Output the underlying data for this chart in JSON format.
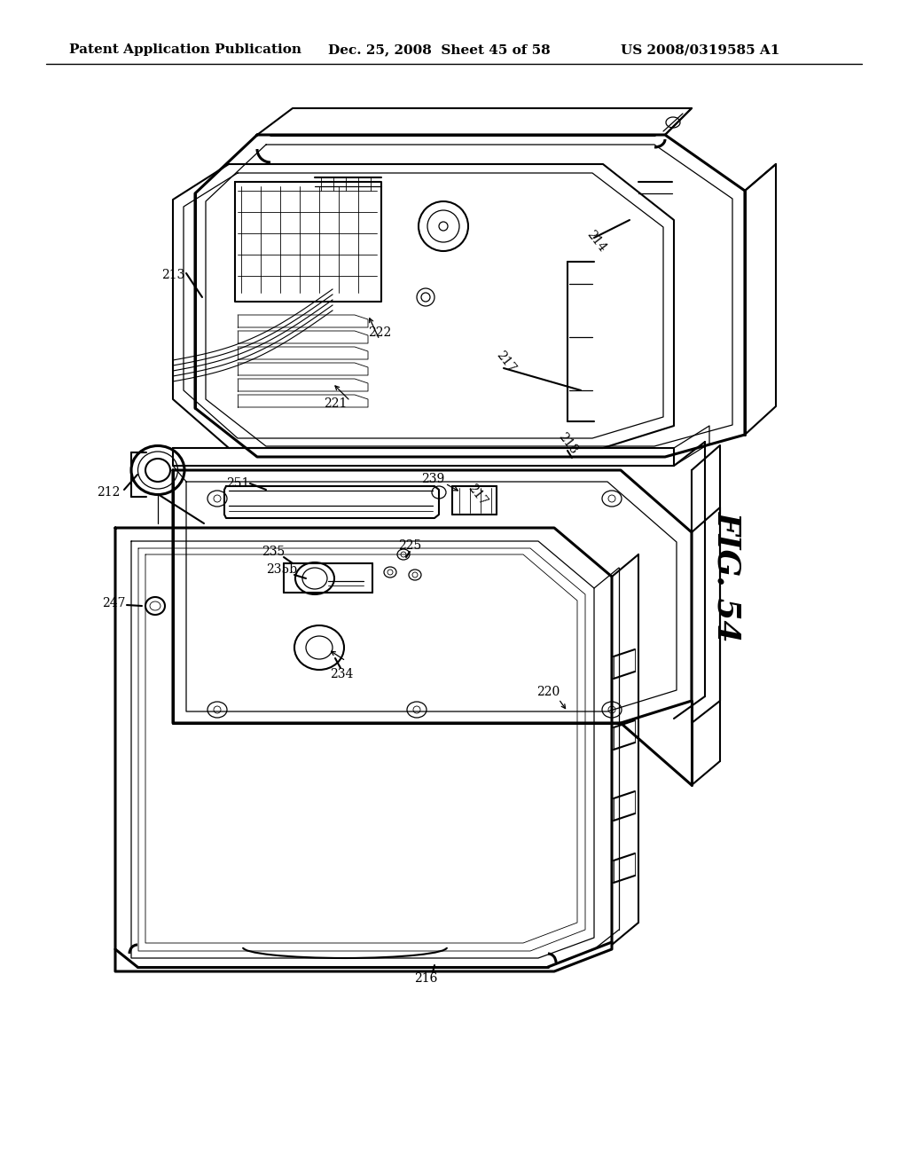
{
  "background_color": "#ffffff",
  "header_left": "Patent Application Publication",
  "header_center": "Dec. 25, 2008  Sheet 45 of 58",
  "header_right": "US 2008/0319585 A1",
  "figure_label": "FIG. 54",
  "header_font_size": 11,
  "label_font_size": 10,
  "fig_label_fontsize": 26,
  "line_color": "#000000",
  "lw_thick": 2.2,
  "lw_main": 1.5,
  "lw_thin": 0.9,
  "lw_very_thin": 0.6,
  "drawing_scale": 1.0
}
